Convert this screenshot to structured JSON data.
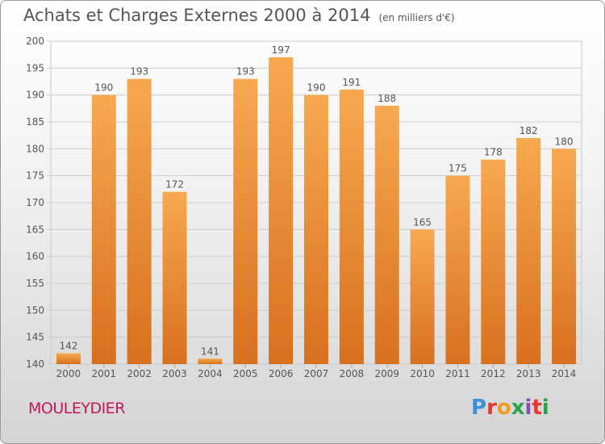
{
  "header": {
    "title": "Achats et Charges Externes 2000 à 2014",
    "unit": "(en milliers d'€)"
  },
  "footer": {
    "city": "MOULEYDIER",
    "logo": "Proxiti",
    "logo_colors": [
      "#3a8fd6",
      "#e8372c",
      "#f29a1f",
      "#2aa34a",
      "#8a4fb3",
      "#e8372c",
      "#2aa34a"
    ]
  },
  "chart_data": {
    "type": "bar",
    "title": "Achats et Charges Externes 2000 à 2014",
    "subtitle": "(en milliers d'€)",
    "xlabel": "",
    "ylabel": "",
    "categories": [
      "2000",
      "2001",
      "2002",
      "2003",
      "2004",
      "2005",
      "2006",
      "2007",
      "2008",
      "2009",
      "2010",
      "2011",
      "2012",
      "2013",
      "2014"
    ],
    "values": [
      142,
      190,
      193,
      172,
      141,
      193,
      197,
      190,
      191,
      188,
      165,
      175,
      178,
      182,
      180
    ],
    "ylim": [
      140,
      200
    ],
    "yticks": [
      140,
      145,
      150,
      155,
      160,
      165,
      170,
      175,
      180,
      185,
      190,
      195,
      200
    ],
    "grid": true,
    "bar_color": "#f39c3f",
    "bar_color_dark": "#d9711f"
  }
}
